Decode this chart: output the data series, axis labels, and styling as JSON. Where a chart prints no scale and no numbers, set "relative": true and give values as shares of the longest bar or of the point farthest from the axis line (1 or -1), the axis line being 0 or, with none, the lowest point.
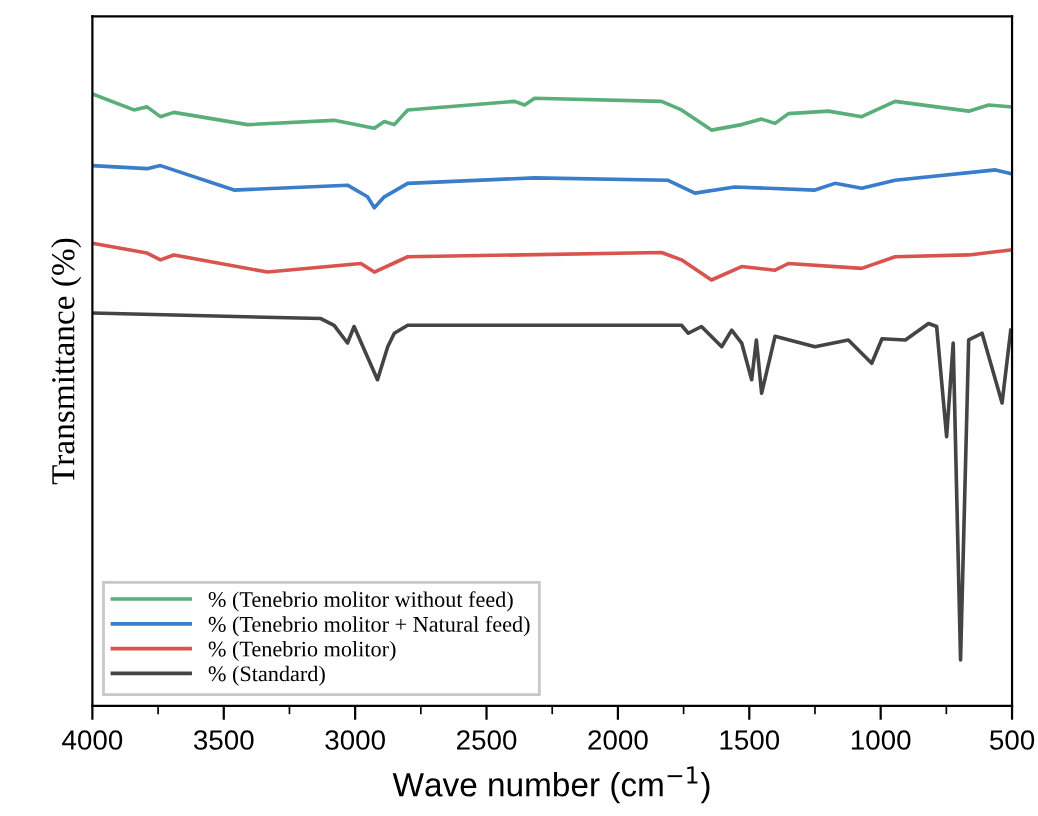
{
  "chart_data": {
    "type": "line",
    "relative": true,
    "xlabel": "Wave number (cm$^{−1}$)",
    "ylabel": "Transmittance (%)",
    "xlim": [
      4000,
      500
    ],
    "xticks": [
      4000,
      3500,
      3000,
      2500,
      2000,
      1500,
      1000,
      500
    ],
    "legend": "bottom left",
    "grid": false,
    "marker": "none",
    "line_style": "solid",
    "series": [
      {
        "name": "% (Tenebrio molitor without feed)",
        "color": "#5aae7a",
        "x": [
          4000,
          3842,
          3792,
          3741,
          3690,
          3410,
          3080,
          2927,
          2889,
          2851,
          2800,
          2393,
          2355,
          2317,
          1834,
          1758,
          1644,
          1529,
          1453,
          1402,
          1351,
          1199,
          1072,
          945,
          665,
          589,
          505
        ],
        "values": [
          1.0,
          0.974,
          0.979,
          0.963,
          0.97,
          0.95,
          0.957,
          0.944,
          0.955,
          0.95,
          0.974,
          0.988,
          0.982,
          0.993,
          0.988,
          0.974,
          0.941,
          0.95,
          0.959,
          0.952,
          0.968,
          0.972,
          0.963,
          0.988,
          0.972,
          0.982,
          0.979
        ]
      },
      {
        "name": "% (Tenebrio molitor + Natural feed)",
        "color": "#3a7dc9",
        "x": [
          4000,
          3792,
          3741,
          3461,
          3029,
          2953,
          2927,
          2889,
          2864,
          2800,
          2317,
          1809,
          1707,
          1555,
          1250,
          1174,
          1072,
          945,
          563,
          505
        ],
        "values": [
          0.883,
          0.878,
          0.883,
          0.843,
          0.851,
          0.832,
          0.814,
          0.832,
          0.838,
          0.854,
          0.863,
          0.859,
          0.838,
          0.848,
          0.843,
          0.854,
          0.846,
          0.859,
          0.876,
          0.87
        ]
      },
      {
        "name": "% (Tenebrio molitor)",
        "color": "#d9534f",
        "x": [
          4000,
          3792,
          3741,
          3690,
          3334,
          2978,
          2927,
          2800,
          1834,
          1758,
          1644,
          1529,
          1402,
          1351,
          1072,
          945,
          665,
          505
        ],
        "values": [
          0.756,
          0.74,
          0.729,
          0.737,
          0.709,
          0.723,
          0.709,
          0.734,
          0.741,
          0.729,
          0.696,
          0.718,
          0.712,
          0.723,
          0.715,
          0.734,
          0.737,
          0.745
        ]
      },
      {
        "name": "% (Standard)",
        "color": "#444444",
        "x": [
          4000,
          3131,
          3080,
          3029,
          3004,
          2915,
          2876,
          2851,
          2800,
          1758,
          1732,
          1682,
          1605,
          1567,
          1529,
          1491,
          1473,
          1453,
          1402,
          1250,
          1123,
          1034,
          995,
          906,
          818,
          787,
          749,
          724,
          696,
          665,
          614,
          538,
          505
        ],
        "values": [
          0.642,
          0.633,
          0.622,
          0.593,
          0.62,
          0.533,
          0.587,
          0.609,
          0.622,
          0.622,
          0.609,
          0.62,
          0.587,
          0.614,
          0.593,
          0.533,
          0.598,
          0.511,
          0.604,
          0.587,
          0.598,
          0.56,
          0.6,
          0.598,
          0.625,
          0.62,
          0.44,
          0.593,
          0.075,
          0.598,
          0.609,
          0.495,
          0.614
        ]
      }
    ]
  }
}
